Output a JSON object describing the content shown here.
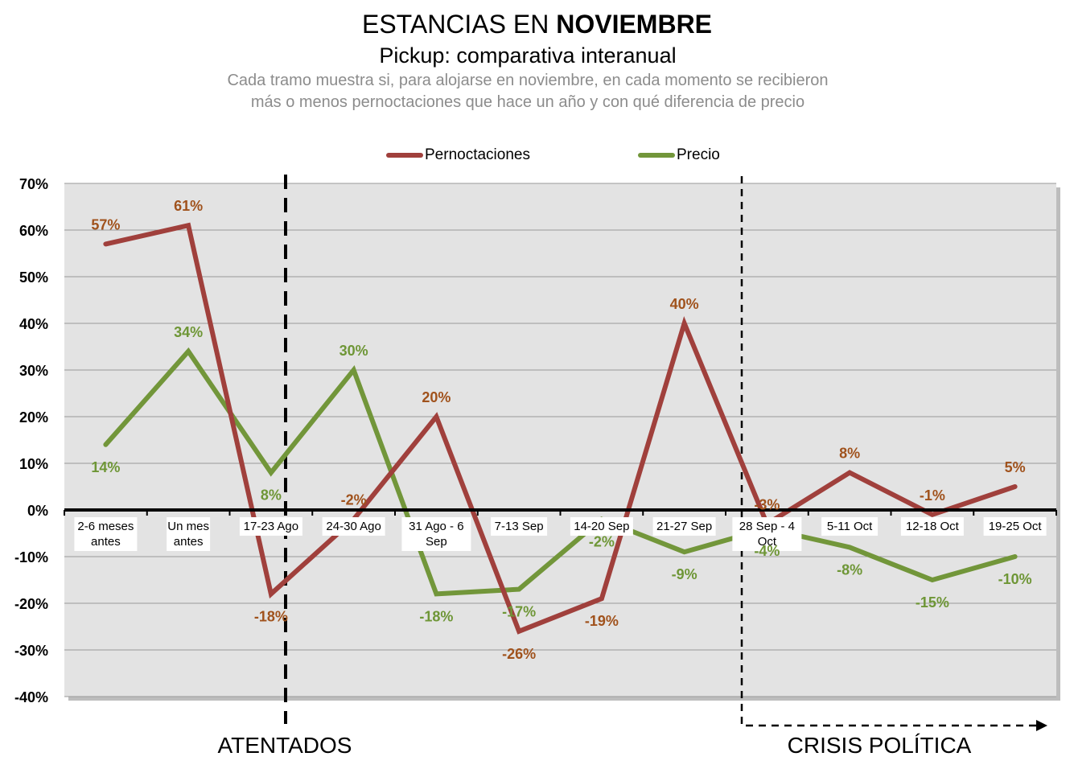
{
  "header": {
    "title_regular": "ESTANCIAS EN ",
    "title_bold": "NOVIEMBRE",
    "subtitle": "Pickup: comparativa interanual",
    "description_line1": "Cada tramo muestra si, para alojarse en noviembre, en cada momento se recibieron",
    "description_line2": "más o menos pernoctaciones que hace un año y con qué diferencia de precio"
  },
  "colors": {
    "pernoctaciones": "#a0403c",
    "precio": "#72963a",
    "pernoctaciones_label": "#a0521c",
    "precio_label": "#6e9636",
    "plot_bg": "#e3e3e3",
    "grid": "#9a9a9a"
  },
  "chart_data": {
    "type": "line",
    "categories": [
      "2-6 meses\nantes",
      "Un mes\nantes",
      "17-23 Ago",
      "24-30 Ago",
      "31 Ago - 6\nSep",
      "7-13 Sep",
      "14-20 Sep",
      "21-27 Sep",
      "28 Sep - 4\nOct",
      "5-11 Oct",
      "12-18 Oct",
      "19-25 Oct"
    ],
    "series": [
      {
        "name": "Pernoctaciones",
        "values": [
          57,
          61,
          -18,
          -2,
          20,
          -26,
          -19,
          40,
          -3,
          8,
          -1,
          5
        ],
        "labels": [
          "57%",
          "61%",
          "-18%",
          "-2%",
          "20%",
          "-26%",
          "-19%",
          "40%",
          "-3%",
          "8%",
          "-1%",
          "5%"
        ]
      },
      {
        "name": "Precio",
        "values": [
          14,
          34,
          8,
          30,
          -18,
          -17,
          -2,
          -9,
          -4,
          -8,
          -15,
          -10
        ],
        "labels": [
          "14%",
          "34%",
          "8%",
          "30%",
          "-18%",
          "-17%",
          "-2%",
          "-9%",
          "-4%",
          "-8%",
          "-15%",
          "-10%"
        ]
      }
    ],
    "ylim": [
      -40,
      70
    ],
    "yticks": [
      "70%",
      "60%",
      "50%",
      "40%",
      "30%",
      "20%",
      "10%",
      "0%",
      "-10%",
      "-20%",
      "-30%",
      "-40%"
    ],
    "legend_position": "top",
    "grid": true,
    "annotations": [
      "ATENTADOS",
      "CRISIS POLÍTICA"
    ]
  }
}
